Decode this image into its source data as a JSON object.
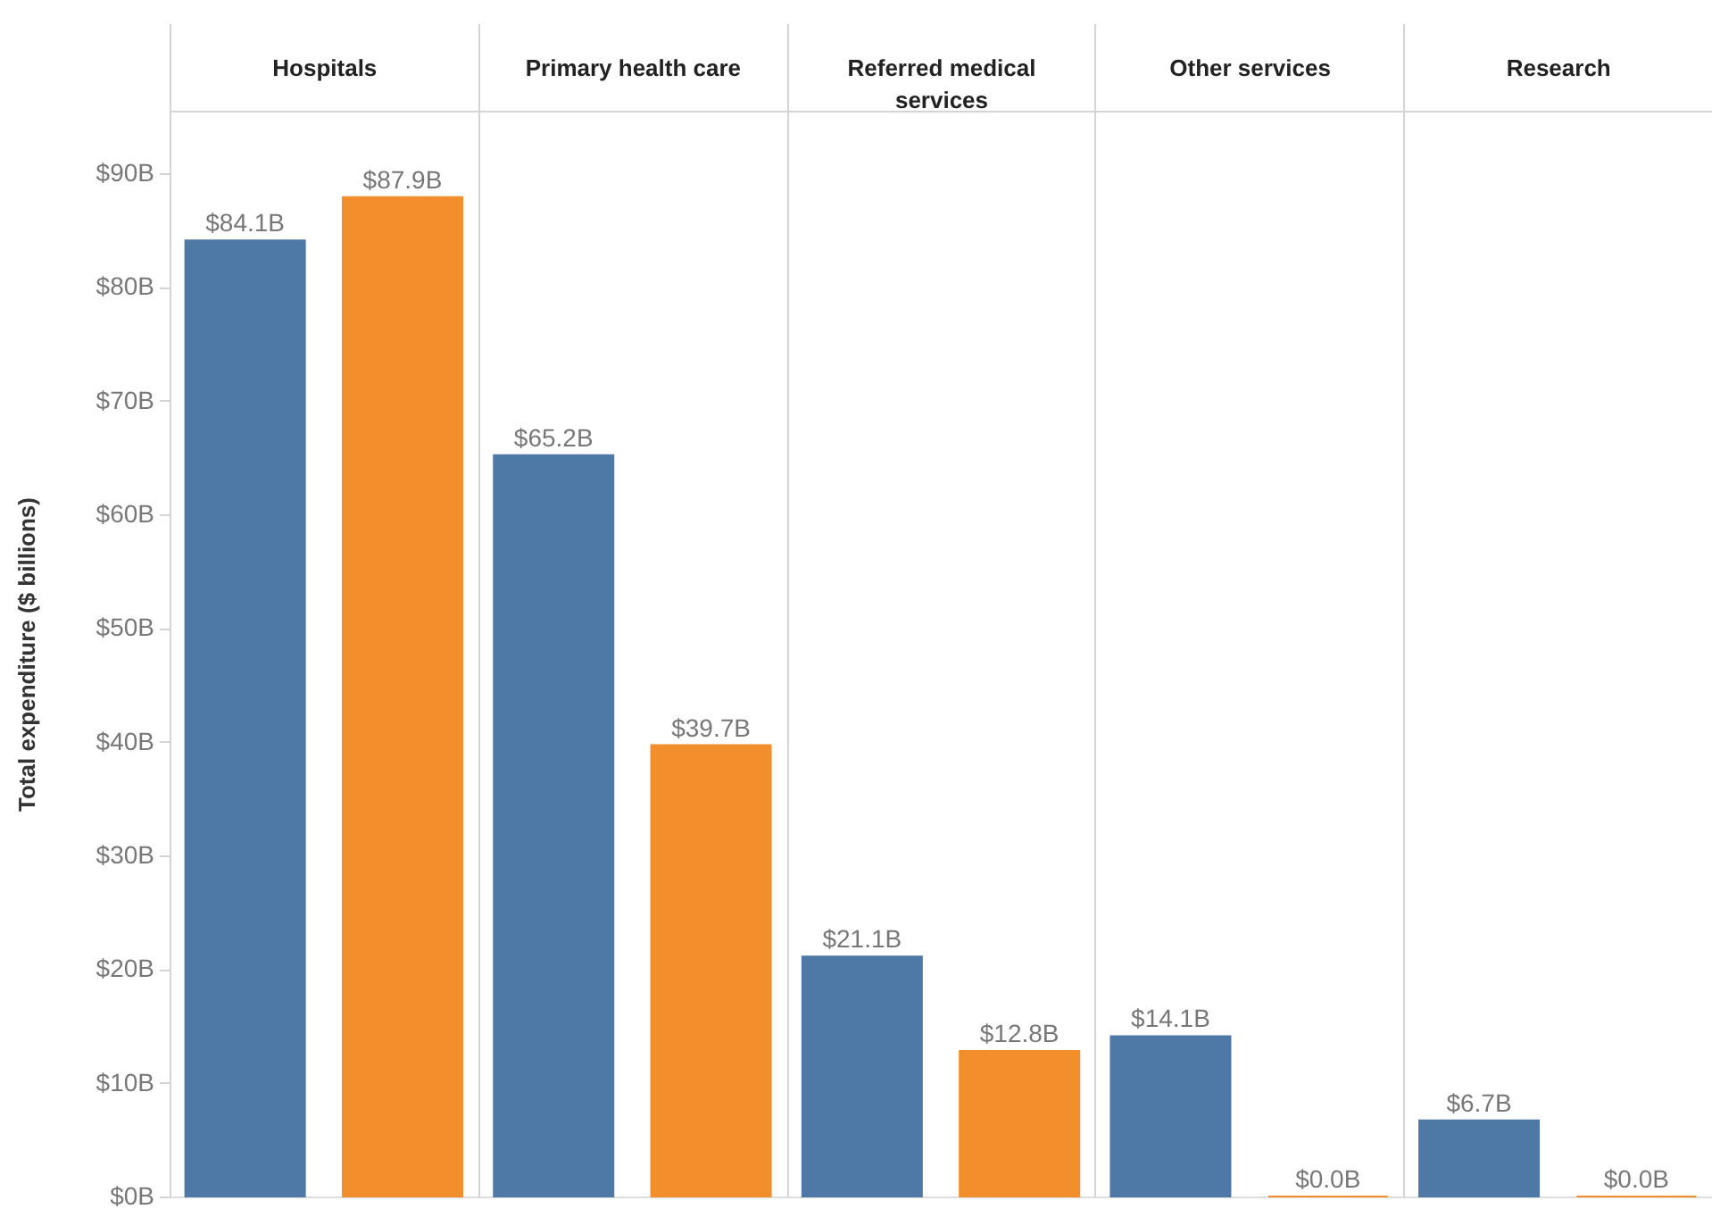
{
  "chart_data": {
    "type": "bar",
    "categories": [
      "Hospitals",
      "Primary health care",
      "Referred medical services",
      "Other services",
      "Research"
    ],
    "series": [
      {
        "color": "#4e79a7",
        "values": [
          84.1,
          65.2,
          21.1,
          14.1,
          6.7
        ],
        "value_labels": [
          "$84.1B",
          "$65.2B",
          "$21.1B",
          "$14.1B",
          "$6.7B"
        ]
      },
      {
        "color": "#f28e2b",
        "values": [
          87.9,
          39.7,
          12.8,
          0.0,
          0.0
        ],
        "value_labels": [
          "$87.9B",
          "$39.7B",
          "$12.8B",
          "$0.0B",
          "$0.0B"
        ]
      }
    ],
    "ylabel": "Total expenditure ($ billions)",
    "ylim": [
      0,
      95.5
    ],
    "yticks": [
      {
        "value": 0,
        "label": "$0B"
      },
      {
        "value": 10,
        "label": "$10B"
      },
      {
        "value": 20,
        "label": "$20B"
      },
      {
        "value": 30,
        "label": "$30B"
      },
      {
        "value": 40,
        "label": "$40B"
      },
      {
        "value": 50,
        "label": "$50B"
      },
      {
        "value": 60,
        "label": "$60B"
      },
      {
        "value": 70,
        "label": "$70B"
      },
      {
        "value": 80,
        "label": "$80B"
      },
      {
        "value": 90,
        "label": "$90B"
      }
    ]
  }
}
